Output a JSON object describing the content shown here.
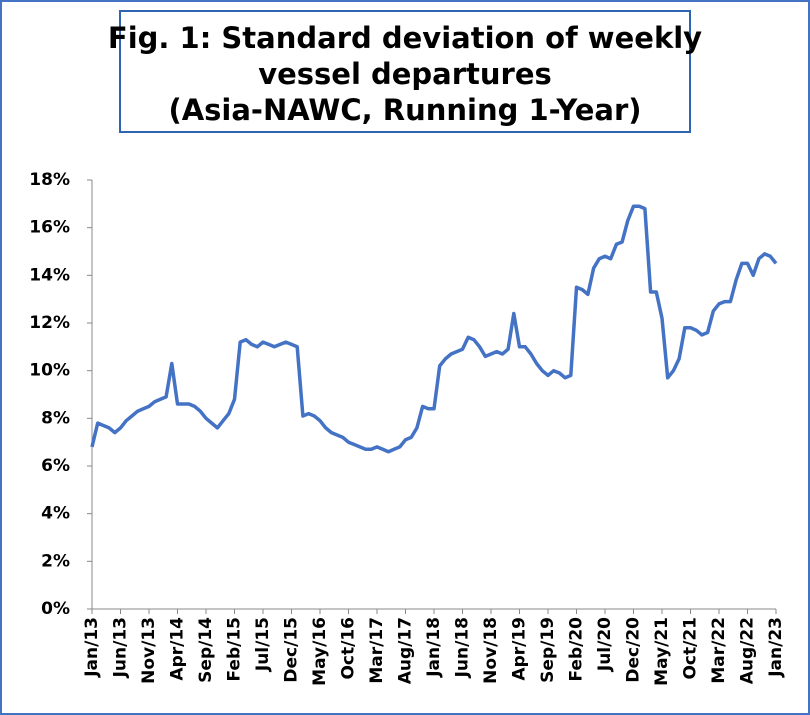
{
  "chart_data": {
    "type": "line",
    "title": [
      "Fig. 1: Standard deviation of weekly",
      "vessel departures",
      "(Asia-NAWC, Running 1-Year)"
    ],
    "categories": [
      "Jan/13",
      null,
      null,
      null,
      null,
      "Jun/13",
      null,
      null,
      null,
      null,
      "Nov/13",
      null,
      null,
      null,
      null,
      "Apr/14",
      null,
      null,
      null,
      null,
      "Sep/14",
      null,
      null,
      null,
      null,
      "Feb/15",
      null,
      null,
      null,
      null,
      "Jul/15",
      null,
      null,
      null,
      null,
      "Dec/15",
      null,
      null,
      null,
      null,
      "May/16",
      null,
      null,
      null,
      null,
      "Oct/16",
      null,
      null,
      null,
      null,
      "Mar/17",
      null,
      null,
      null,
      null,
      "Aug/17",
      null,
      null,
      null,
      null,
      "Jan/18",
      null,
      null,
      null,
      null,
      "Jun/18",
      null,
      null,
      null,
      null,
      "Nov/18",
      null,
      null,
      null,
      null,
      "Apr/19",
      null,
      null,
      null,
      null,
      "Sep/19",
      null,
      null,
      null,
      null,
      "Feb/20",
      null,
      null,
      null,
      null,
      "Jul/20",
      null,
      null,
      null,
      null,
      "Dec/20",
      null,
      null,
      null,
      null,
      "May/21",
      null,
      null,
      null,
      null,
      "Oct/21",
      null,
      null,
      null,
      null,
      "Mar/22",
      null,
      null,
      null,
      null,
      "Aug/22",
      null,
      null,
      null,
      null,
      "Jan/23"
    ],
    "values": [
      6.8,
      7.8,
      7.7,
      7.6,
      7.4,
      7.6,
      7.9,
      8.1,
      8.3,
      8.4,
      8.5,
      8.7,
      8.8,
      8.9,
      10.3,
      8.6,
      8.6,
      8.6,
      8.5,
      8.3,
      8.0,
      7.8,
      7.6,
      7.9,
      8.2,
      8.8,
      11.2,
      11.3,
      11.1,
      11.0,
      11.2,
      11.1,
      11.0,
      11.1,
      11.2,
      11.1,
      11.0,
      8.1,
      8.2,
      8.1,
      7.9,
      7.6,
      7.4,
      7.3,
      7.2,
      7.0,
      6.9,
      6.8,
      6.7,
      6.7,
      6.8,
      6.7,
      6.6,
      6.7,
      6.8,
      7.1,
      7.2,
      7.6,
      8.5,
      8.4,
      8.4,
      10.2,
      10.5,
      10.7,
      10.8,
      10.9,
      11.4,
      11.3,
      11.0,
      10.6,
      10.7,
      10.8,
      10.7,
      10.9,
      12.4,
      11.0,
      11.0,
      10.7,
      10.3,
      10.0,
      9.8,
      10.0,
      9.9,
      9.7,
      9.8,
      13.5,
      13.4,
      13.2,
      14.3,
      14.7,
      14.8,
      14.7,
      15.3,
      15.4,
      16.3,
      16.9,
      16.9,
      16.8,
      13.3,
      13.3,
      12.2,
      9.7,
      10.0,
      10.5,
      11.8,
      11.8,
      11.7,
      11.5,
      11.6,
      12.5,
      12.8,
      12.9,
      12.9,
      13.8,
      14.5,
      14.5,
      14.0,
      14.7,
      14.9,
      14.8,
      14.5
    ],
    "color": "#4472c4",
    "ylim": [
      0,
      18
    ],
    "yticks": [
      {
        "value": 0,
        "label": "0%"
      },
      {
        "value": 2,
        "label": "2%"
      },
      {
        "value": 4,
        "label": "4%"
      },
      {
        "value": 6,
        "label": "6%"
      },
      {
        "value": 8,
        "label": "8%"
      },
      {
        "value": 10,
        "label": "10%"
      },
      {
        "value": 12,
        "label": "12%"
      },
      {
        "value": 14,
        "label": "14%"
      },
      {
        "value": 16,
        "label": "16%"
      },
      {
        "value": 18,
        "label": "18%"
      }
    ],
    "grid": false
  }
}
